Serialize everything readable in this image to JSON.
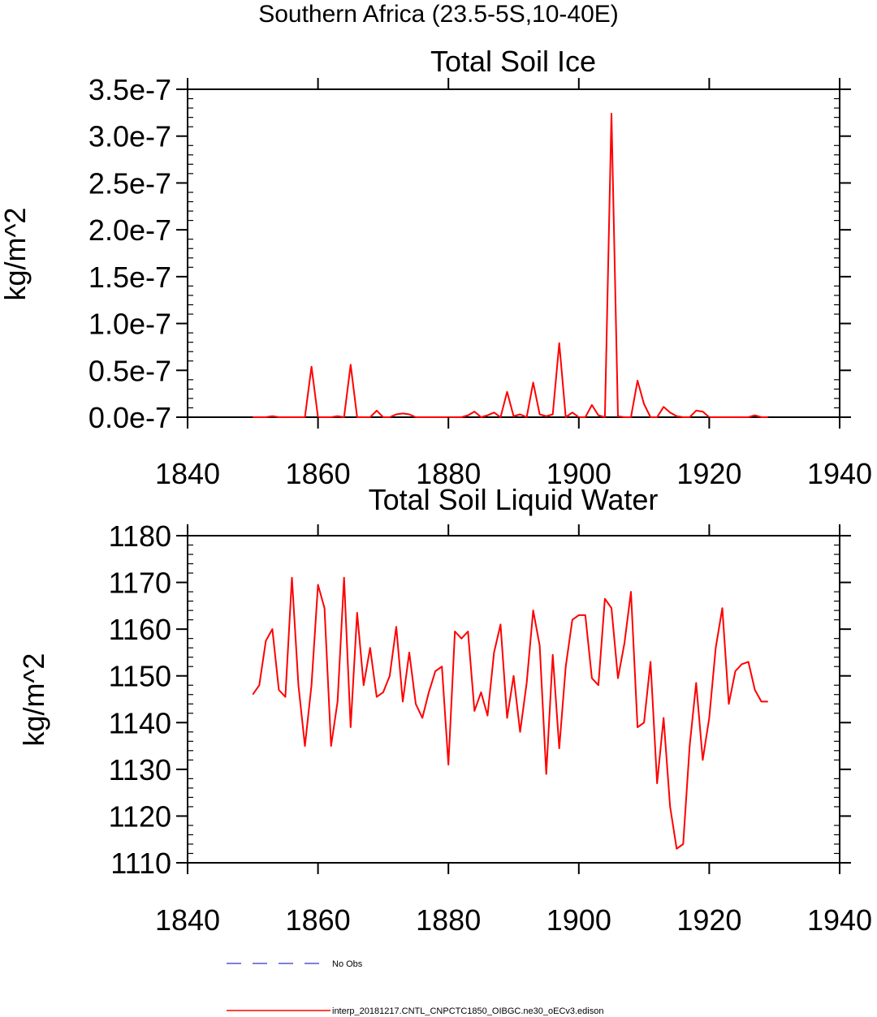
{
  "figure": {
    "suptitle": "Southern Africa (23.5-5S,10-40E)"
  },
  "chart_data": [
    {
      "type": "line",
      "title": "Total Soil Ice",
      "xlabel": "",
      "ylabel": "kg/m^2",
      "xlim": [
        1840,
        1940
      ],
      "ylim": [
        0,
        3.5e-07
      ],
      "xticks": [
        1840,
        1860,
        1880,
        1900,
        1920,
        1940
      ],
      "xtick_labels": [
        "1840",
        "1860",
        "1880",
        "1900",
        "1920",
        "1940"
      ],
      "yticks": [
        0,
        5e-08,
        1e-07,
        1.5e-07,
        2e-07,
        2.5e-07,
        3e-07,
        3.5e-07
      ],
      "ytick_labels": [
        "0.0e-7",
        "0.5e-7",
        "1.0e-7",
        "1.5e-7",
        "2.0e-7",
        "2.5e-7",
        "3.0e-7",
        "3.5e-7"
      ],
      "grid": false,
      "series": [
        {
          "name": "interp_20181217.CNTL_CNPCTC1850_OIBGC.ne30_oECv3.edison",
          "color": "#ff0000",
          "x": [
            1850,
            1851,
            1852,
            1853,
            1854,
            1855,
            1856,
            1857,
            1858,
            1859,
            1860,
            1861,
            1862,
            1863,
            1864,
            1865,
            1866,
            1867,
            1868,
            1869,
            1870,
            1871,
            1872,
            1873,
            1874,
            1875,
            1876,
            1877,
            1878,
            1879,
            1880,
            1881,
            1882,
            1883,
            1884,
            1885,
            1886,
            1887,
            1888,
            1889,
            1890,
            1891,
            1892,
            1893,
            1894,
            1895,
            1896,
            1897,
            1898,
            1899,
            1900,
            1901,
            1902,
            1903,
            1904,
            1905,
            1906,
            1907,
            1908,
            1909,
            1910,
            1911,
            1912,
            1913,
            1914,
            1915,
            1916,
            1917,
            1918,
            1919,
            1920,
            1921,
            1922,
            1923,
            1924,
            1925,
            1926,
            1927,
            1928,
            1929
          ],
          "values": [
            0,
            0,
            0,
            1e-09,
            0,
            0,
            0,
            0,
            0,
            5.4e-08,
            0,
            0,
            0,
            1e-09,
            0,
            5.6e-08,
            0,
            0,
            0,
            7e-09,
            0,
            0,
            3e-09,
            4e-09,
            3e-09,
            0,
            0,
            0,
            0,
            0,
            0,
            0,
            0,
            2e-09,
            6e-09,
            0,
            2e-09,
            5e-09,
            0,
            2.7e-08,
            1e-09,
            3e-09,
            0,
            3.7e-08,
            3e-09,
            1e-09,
            3e-09,
            7.9e-08,
            0,
            5e-09,
            0,
            0,
            1.3e-08,
            2e-09,
            0,
            3.24e-07,
            1e-09,
            0,
            0,
            3.9e-08,
            1.4e-08,
            0,
            0,
            1.1e-08,
            5e-09,
            1e-09,
            0,
            0,
            7e-09,
            6e-09,
            0,
            0,
            0,
            0,
            0,
            0,
            0,
            2e-09,
            0,
            0
          ]
        },
        {
          "name": "No Obs",
          "color": "#3333cc",
          "style": "dashed",
          "x": [],
          "values": []
        }
      ]
    },
    {
      "type": "line",
      "title": "Total Soil Liquid Water",
      "xlabel": "",
      "ylabel": "kg/m^2",
      "xlim": [
        1840,
        1940
      ],
      "ylim": [
        1110,
        1180
      ],
      "xticks": [
        1840,
        1860,
        1880,
        1900,
        1920,
        1940
      ],
      "xtick_labels": [
        "1840",
        "1860",
        "1880",
        "1900",
        "1920",
        "1940"
      ],
      "yticks": [
        1110,
        1120,
        1130,
        1140,
        1150,
        1160,
        1170,
        1180
      ],
      "ytick_labels": [
        "1110",
        "1120",
        "1130",
        "1140",
        "1150",
        "1160",
        "1170",
        "1180"
      ],
      "grid": false,
      "series": [
        {
          "name": "interp_20181217.CNTL_CNPCTC1850_OIBGC.ne30_oECv3.edison",
          "color": "#ff0000",
          "x": [
            1850,
            1851,
            1852,
            1853,
            1854,
            1855,
            1856,
            1857,
            1858,
            1859,
            1860,
            1861,
            1862,
            1863,
            1864,
            1865,
            1866,
            1867,
            1868,
            1869,
            1870,
            1871,
            1872,
            1873,
            1874,
            1875,
            1876,
            1877,
            1878,
            1879,
            1880,
            1881,
            1882,
            1883,
            1884,
            1885,
            1886,
            1887,
            1888,
            1889,
            1890,
            1891,
            1892,
            1893,
            1894,
            1895,
            1896,
            1897,
            1898,
            1899,
            1900,
            1901,
            1902,
            1903,
            1904,
            1905,
            1906,
            1907,
            1908,
            1909,
            1910,
            1911,
            1912,
            1913,
            1914,
            1915,
            1916,
            1917,
            1918,
            1919,
            1920,
            1921,
            1922,
            1923,
            1924,
            1925,
            1926,
            1927,
            1928,
            1929
          ],
          "values": [
            1146,
            1148,
            1157.5,
            1160,
            1147,
            1145.5,
            1171,
            1148,
            1135,
            1148,
            1169.5,
            1164.5,
            1135,
            1144.5,
            1171,
            1139,
            1163.5,
            1148,
            1156,
            1145.5,
            1146.5,
            1150,
            1160.5,
            1144.5,
            1155,
            1144,
            1141,
            1146.5,
            1151,
            1152,
            1131,
            1159.5,
            1158,
            1159.5,
            1142.5,
            1146.5,
            1141.5,
            1155,
            1161,
            1141,
            1150,
            1138,
            1148.5,
            1164,
            1156.5,
            1129,
            1154.5,
            1134.5,
            1152,
            1162,
            1163,
            1163,
            1149.5,
            1148,
            1166.5,
            1164.5,
            1149.5,
            1157,
            1168,
            1139,
            1140,
            1153,
            1127,
            1141,
            1122,
            1113,
            1114,
            1135,
            1148.5,
            1132,
            1141,
            1156,
            1164.5,
            1144,
            1151,
            1152.5,
            1153,
            1147,
            1144.5,
            1144.5
          ]
        },
        {
          "name": "No Obs",
          "color": "#3333cc",
          "style": "dashed",
          "x": [],
          "values": []
        }
      ]
    }
  ],
  "legend": {
    "placement": "bottom",
    "items": [
      {
        "label": "No Obs",
        "color": "#3333cc",
        "style": "dashed"
      },
      {
        "label": "interp_20181217.CNTL_CNPCTC1850_OIBGC.ne30_oECv3.edison",
        "color": "#ff0000",
        "style": "solid"
      }
    ]
  }
}
